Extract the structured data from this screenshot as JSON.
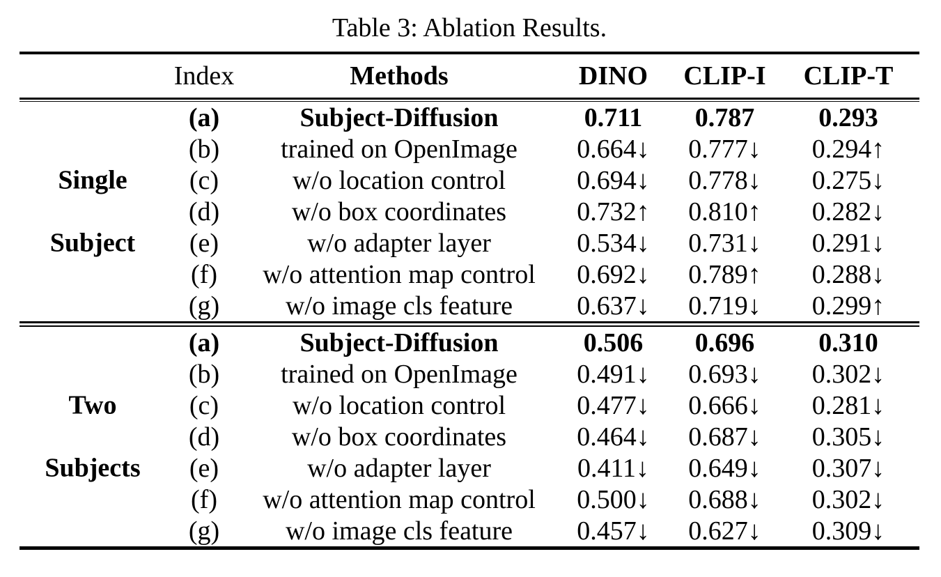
{
  "caption": "Table 3: Ablation Results.",
  "colors": {
    "text": "#000000",
    "background": "#ffffff"
  },
  "columns": {
    "index": "Index",
    "methods": "Methods",
    "dino": "DINO",
    "clip_i": "CLIP-I",
    "clip_t": "CLIP-T"
  },
  "groups": [
    {
      "label_lines": [
        "Single",
        "Subject"
      ],
      "rows": [
        {
          "index": "(a)",
          "method": "Subject-Diffusion",
          "dino": "0.711",
          "clip_i": "0.787",
          "clip_t": "0.293"
        },
        {
          "index": "(b)",
          "method": "trained on OpenImage",
          "dino": "0.664↓",
          "clip_i": "0.777↓",
          "clip_t": "0.294↑"
        },
        {
          "index": "(c)",
          "method": "w/o location control",
          "dino": "0.694↓",
          "clip_i": "0.778↓",
          "clip_t": "0.275↓"
        },
        {
          "index": "(d)",
          "method": "w/o box coordinates",
          "dino": "0.732↑",
          "clip_i": "0.810↑",
          "clip_t": "0.282↓"
        },
        {
          "index": "(e)",
          "method": "w/o adapter layer",
          "dino": "0.534↓",
          "clip_i": "0.731↓",
          "clip_t": "0.291↓"
        },
        {
          "index": "(f)",
          "method": "w/o attention map control",
          "dino": "0.692↓",
          "clip_i": "0.789↑",
          "clip_t": "0.288↓"
        },
        {
          "index": "(g)",
          "method": "w/o image cls feature",
          "dino": "0.637↓",
          "clip_i": "0.719↓",
          "clip_t": "0.299↑"
        }
      ]
    },
    {
      "label_lines": [
        "Two",
        "Subjects"
      ],
      "rows": [
        {
          "index": "(a)",
          "method": "Subject-Diffusion",
          "dino": "0.506",
          "clip_i": "0.696",
          "clip_t": "0.310"
        },
        {
          "index": "(b)",
          "method": "trained on OpenImage",
          "dino": "0.491↓",
          "clip_i": "0.693↓",
          "clip_t": "0.302↓"
        },
        {
          "index": "(c)",
          "method": "w/o location control",
          "dino": "0.477↓",
          "clip_i": "0.666↓",
          "clip_t": "0.281↓"
        },
        {
          "index": "(d)",
          "method": "w/o box coordinates",
          "dino": "0.464↓",
          "clip_i": "0.687↓",
          "clip_t": "0.305↓"
        },
        {
          "index": "(e)",
          "method": "w/o adapter layer",
          "dino": "0.411↓",
          "clip_i": "0.649↓",
          "clip_t": "0.307↓"
        },
        {
          "index": "(f)",
          "method": "w/o attention map control",
          "dino": "0.500↓",
          "clip_i": "0.688↓",
          "clip_t": "0.302↓"
        },
        {
          "index": "(g)",
          "method": "w/o image cls feature",
          "dino": "0.457↓",
          "clip_i": "0.627↓",
          "clip_t": "0.309↓"
        }
      ]
    }
  ]
}
